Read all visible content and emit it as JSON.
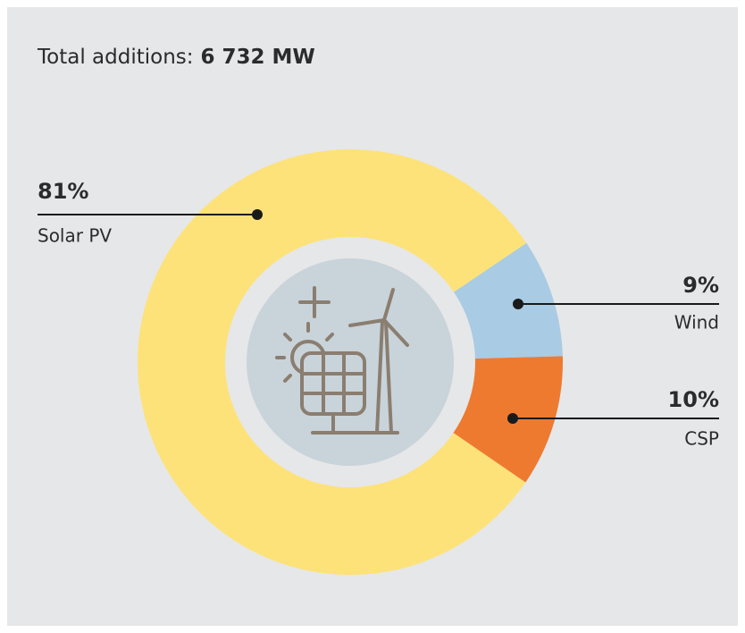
{
  "chart_data": {
    "type": "pie",
    "title": "Total additions:",
    "total": "6 732 MW",
    "categories": [
      "Solar PV",
      "Wind",
      "CSP"
    ],
    "values": [
      81,
      9,
      10
    ],
    "value_labels": [
      "81%",
      "9%",
      "10%"
    ],
    "colors": [
      "#fde27a",
      "#a9cbe3",
      "#ee7a30"
    ]
  }
}
